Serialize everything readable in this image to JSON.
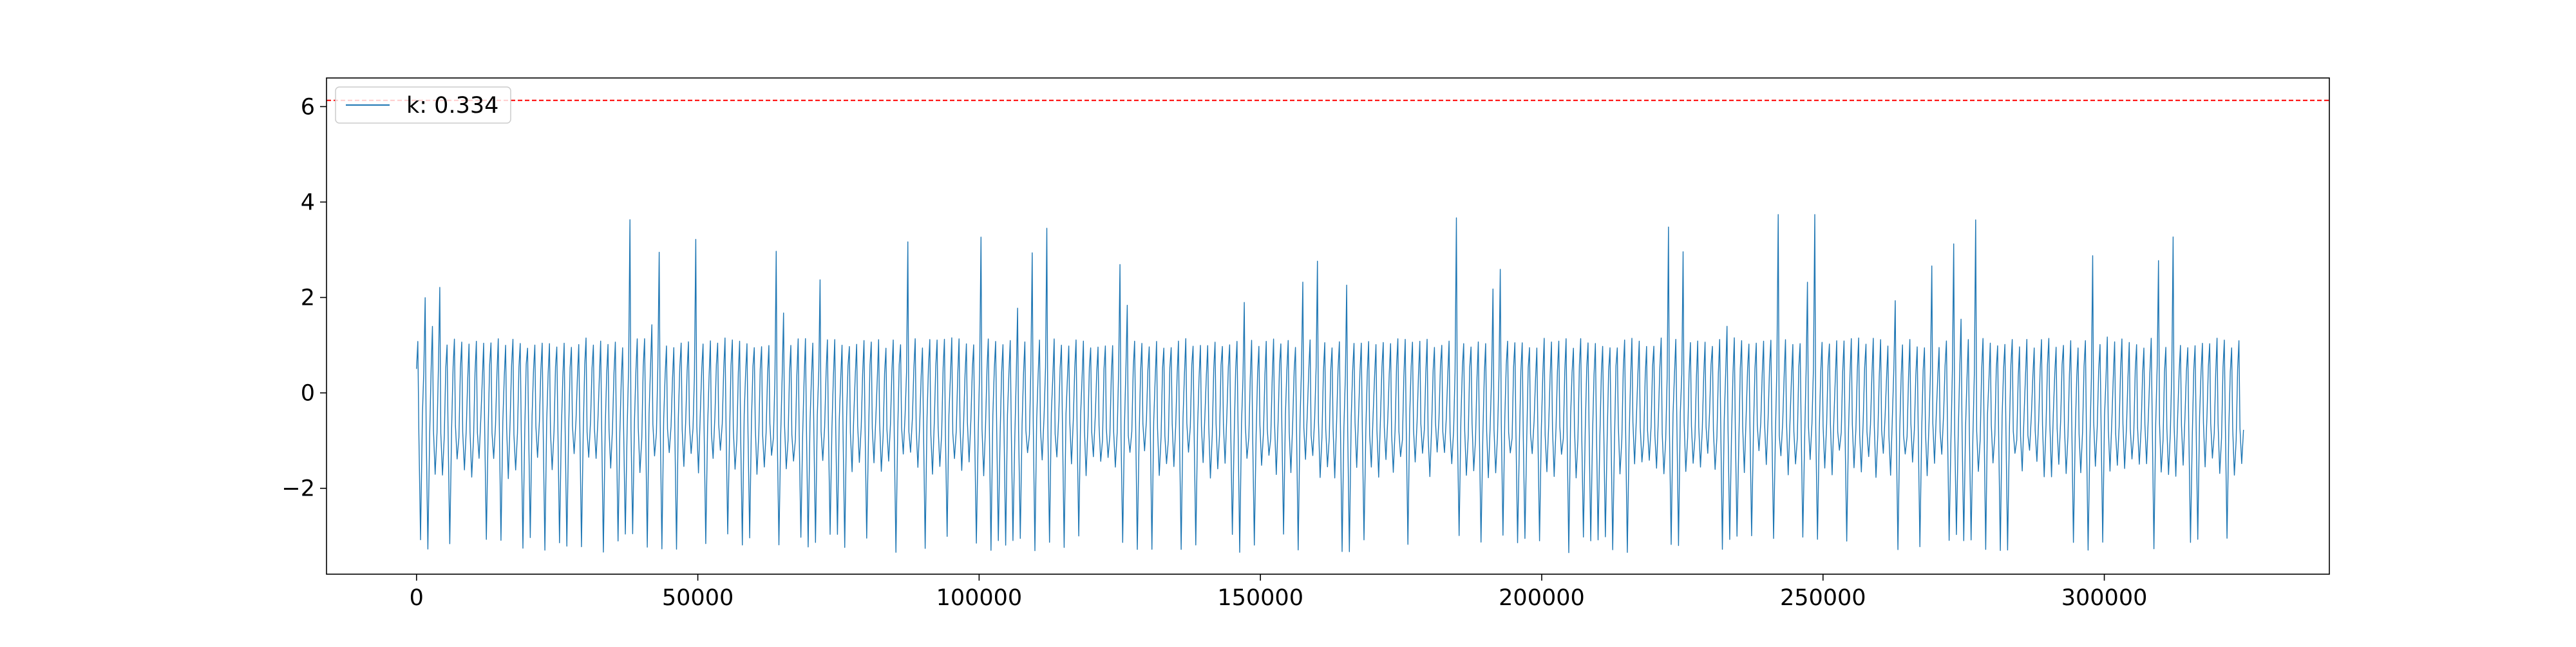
{
  "chart_data": {
    "type": "line",
    "title": "",
    "xlabel": "",
    "ylabel": "",
    "xlim": [
      -16000,
      340000
    ],
    "ylim": [
      -3.8,
      6.6
    ],
    "grid": false,
    "legend": {
      "placement": "top-left",
      "entries": [
        "k: 0.334"
      ]
    },
    "x_ticks": [
      0,
      50000,
      100000,
      150000,
      200000,
      250000,
      300000
    ],
    "x_tick_labels": [
      "0",
      "50000",
      "100000",
      "150000",
      "200000",
      "250000",
      "300000"
    ],
    "y_ticks": [
      -2,
      0,
      2,
      4,
      6
    ],
    "y_tick_labels": [
      "−2",
      "0",
      "2",
      "4",
      "6"
    ],
    "threshold": {
      "y": 6.13,
      "color": "#ff0000",
      "style": "dashed"
    },
    "series": [
      {
        "name": "k: 0.334",
        "color": "#1f77b4",
        "x_range": [
          0,
          324000
        ],
        "approx_cycle_length": 1300,
        "envelope": {
          "typical_max": 1.1,
          "typical_min": -1.2,
          "peak_max": 3.75,
          "trough_min": -3.35
        }
      }
    ]
  }
}
